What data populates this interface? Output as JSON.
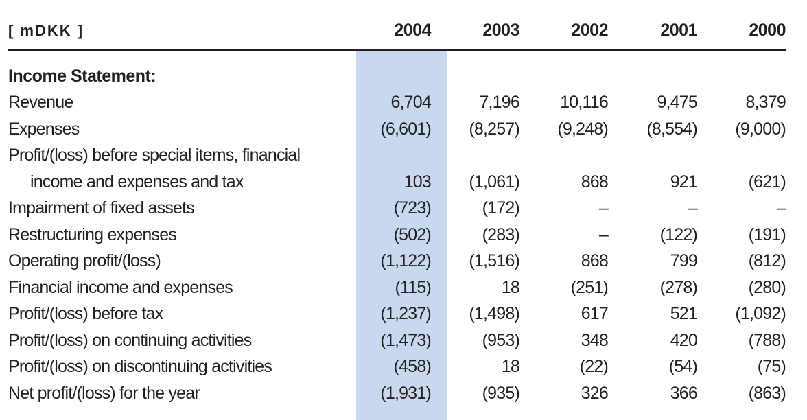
{
  "header": {
    "unit": "[ mDKK ]",
    "years": [
      "2004",
      "2003",
      "2002",
      "2001",
      "2000"
    ]
  },
  "highlight_color": "#c8d8ee",
  "section_title": "Income Statement:",
  "rows": [
    {
      "label": "Revenue",
      "values": [
        "6,704",
        "7,196",
        "10,116",
        "9,475",
        "8,379"
      ]
    },
    {
      "label": "Expenses",
      "values": [
        "(6,601)",
        "(8,257)",
        "(9,248)",
        "(8,554)",
        "(9,000)"
      ]
    },
    {
      "label": "Profit/(loss) before special items, financial",
      "values": [
        "",
        "",
        "",
        "",
        ""
      ]
    },
    {
      "label": "income and expenses and tax",
      "indent": true,
      "values": [
        "103",
        "(1,061)",
        "868",
        "921",
        "(621)"
      ]
    },
    {
      "label": "Impairment of fixed assets",
      "values": [
        "(723)",
        "(172)",
        "–",
        "–",
        "–"
      ]
    },
    {
      "label": "Restructuring expenses",
      "values": [
        "(502)",
        "(283)",
        "–",
        "(122)",
        "(191)"
      ]
    },
    {
      "label": "Operating profit/(loss)",
      "values": [
        "(1,122)",
        "(1,516)",
        "868",
        "799",
        "(812)"
      ]
    },
    {
      "label": "Financial income and expenses",
      "values": [
        "(115)",
        "18",
        "(251)",
        "(278)",
        "(280)"
      ]
    },
    {
      "label": "Profit/(loss) before tax",
      "values": [
        "(1,237)",
        "(1,498)",
        "617",
        "521",
        "(1,092)"
      ]
    },
    {
      "label": "Profit/(loss) on continuing activities",
      "values": [
        "(1,473)",
        "(953)",
        "348",
        "420",
        "(788)"
      ]
    },
    {
      "label": "Profit/(loss) on discontinuing activities",
      "values": [
        "(458)",
        "18",
        "(22)",
        "(54)",
        "(75)"
      ]
    },
    {
      "label": "Net profit/(loss) for the year",
      "values": [
        "(1,931)",
        "(935)",
        "326",
        "366",
        "(863)"
      ]
    }
  ]
}
